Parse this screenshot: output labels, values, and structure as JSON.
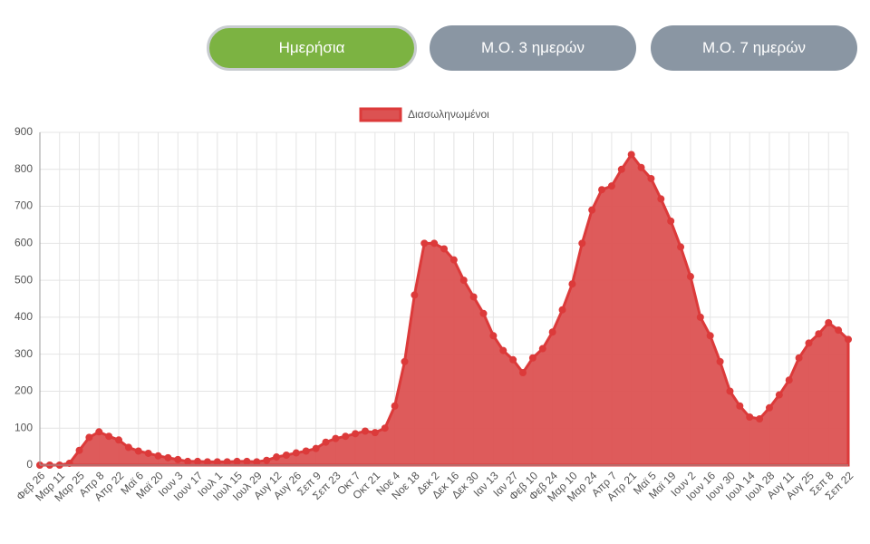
{
  "buttons": [
    "Ημερήσια",
    "Μ.Ο. 3 ημερών",
    "Μ.Ο. 7 ημερών"
  ],
  "chart_data": {
    "type": "area",
    "categories": [
      "Φεβ 26",
      null,
      "Μαρ 11",
      null,
      "Μαρ 25",
      null,
      "Απρ 8",
      null,
      "Απρ 22",
      null,
      "Μαϊ 6",
      null,
      "Μαϊ 20",
      null,
      "Ιουν 3",
      null,
      "Ιουν 17",
      null,
      "Ιουλ 1",
      null,
      "Ιουλ 15",
      null,
      "Ιουλ 29",
      null,
      "Αυγ 12",
      null,
      "Αυγ 26",
      null,
      "Σεπ 9",
      null,
      "Σεπ 23",
      null,
      "Οκτ 7",
      null,
      "Οκτ 21",
      null,
      "Νοε 4",
      null,
      "Νοε 18",
      null,
      "Δεκ 2",
      null,
      "Δεκ 16",
      null,
      "Δεκ 30",
      null,
      "Ιαν 13",
      null,
      "Ιαν 27",
      null,
      "Φεβ 10",
      null,
      "Φεβ 24",
      null,
      "Μαρ 10",
      null,
      "Μαρ 24",
      null,
      "Απρ 7",
      null,
      "Απρ 21",
      null,
      "Μαϊ 5",
      null,
      "Μαϊ 19",
      null,
      "Ιουν 2",
      null,
      "Ιουν 16",
      null,
      "Ιουν 30",
      null,
      "Ιουλ 14",
      null,
      "Ιουλ 28",
      null,
      "Αυγ 11",
      null,
      "Αυγ 25",
      null,
      "Σεπ 8",
      null,
      "Σεπ 22"
    ],
    "series": [
      {
        "name": "Διασωληνωμένοι",
        "color": "#dc3a3a",
        "fill": "#dc5252",
        "values": [
          0,
          0,
          0,
          5,
          40,
          75,
          90,
          78,
          68,
          48,
          38,
          32,
          25,
          20,
          15,
          10,
          10,
          9,
          9,
          9,
          10,
          10,
          9,
          13,
          22,
          27,
          33,
          38,
          45,
          62,
          72,
          78,
          85,
          92,
          88,
          100,
          160,
          280,
          460,
          600,
          600,
          585,
          555,
          500,
          455,
          410,
          350,
          310,
          285,
          250,
          290,
          315,
          360,
          420,
          490,
          600,
          690,
          745,
          755,
          800,
          840,
          805,
          775,
          720,
          660,
          590,
          510,
          400,
          350,
          280,
          200,
          160,
          130,
          125,
          155,
          190,
          230,
          290,
          330,
          355,
          385,
          365,
          340
        ]
      }
    ],
    "ylim": [
      0,
      900
    ],
    "yticks": [
      0,
      100,
      200,
      300,
      400,
      500,
      600,
      700,
      800,
      900
    ],
    "grid": true,
    "legend": "top"
  }
}
